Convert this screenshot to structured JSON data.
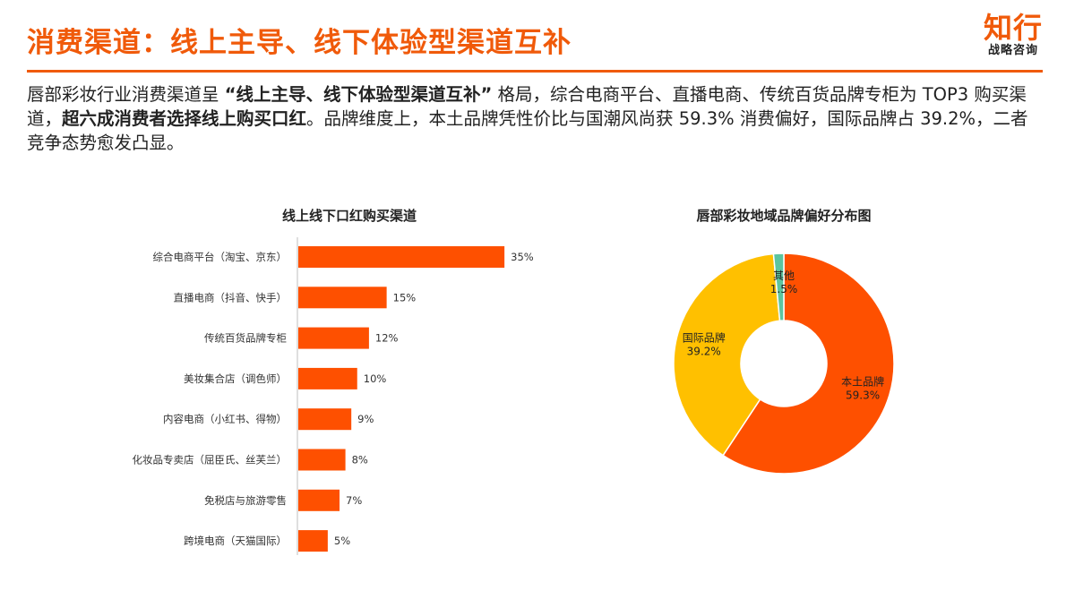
{
  "header": {
    "title": "消费渠道：线上主导、线下体验型渠道互补",
    "logo_main": "知行",
    "logo_sub": "战略咨询"
  },
  "summary": {
    "p1": "唇部彩妆行业消费渠道呈 ",
    "b1": "“线上主导、线下体验型渠道互补”",
    "p2": " 格局，综合电商平台、直播电商、传统百货品牌专柜为 TOP3 购买渠道，",
    "b2": "超六成消费者选择线上购买口红",
    "p3": "。品牌维度上，本土品牌凭性价比与国潮风尚获 59.3% 消费偏好，国际品牌占 39.2%，二者竞争态势愈发凸显。"
  },
  "colors": {
    "accent": "#f05a0a",
    "bar": "#fe5000",
    "pie_local": "#fe5000",
    "pie_intl": "#ffc000",
    "pie_other": "#5cc59f"
  },
  "chart_data": [
    {
      "type": "bar",
      "orientation": "horizontal",
      "title": "线上线下口红购买渠道",
      "categories": [
        "综合电商平台（淘宝、京东）",
        "直播电商（抖音、快手）",
        "传统百货品牌专柜",
        "美妆集合店（调色师）",
        "内容电商（小红书、得物）",
        "化妆品专卖店（屈臣氏、丝芙兰）",
        "免税店与旅游零售",
        "跨境电商（天猫国际）"
      ],
      "values": [
        35,
        15,
        12,
        10,
        9,
        8,
        7,
        5
      ],
      "labels": [
        "35%",
        "15%",
        "12%",
        "10%",
        "9%",
        "8%",
        "7%",
        "5%"
      ],
      "xlim": [
        0,
        40
      ],
      "grid": false,
      "legend": "none"
    },
    {
      "type": "pie",
      "subtype": "donut",
      "title": "唇部彩妆地域品牌偏好分布图",
      "slices": [
        {
          "name": "本土品牌",
          "value": 59.3,
          "label": "59.3%"
        },
        {
          "name": "国际品牌",
          "value": 39.2,
          "label": "39.2%"
        },
        {
          "name": "其他",
          "value": 1.5,
          "label": "1.5%"
        }
      ],
      "start": "12 o'clock",
      "direction": "clockwise",
      "legend": "none"
    }
  ]
}
